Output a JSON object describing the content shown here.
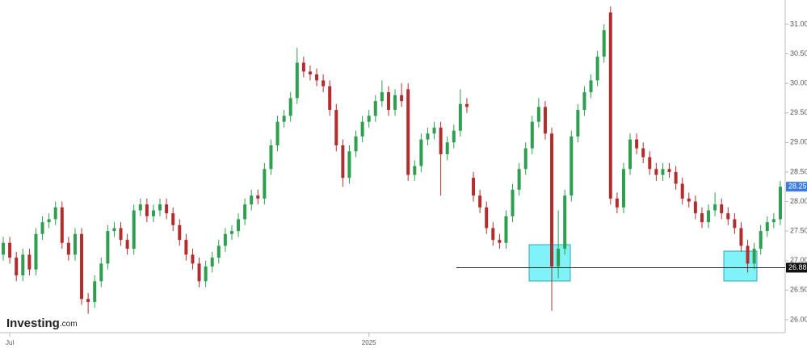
{
  "chart_data": {
    "type": "candlestick",
    "open": [
      27.1,
      27.3,
      27.05,
      26.75,
      27.1,
      26.85,
      27.45,
      27.65,
      27.7,
      27.9,
      27.3,
      27.1,
      27.45,
      26.35,
      26.3,
      26.65,
      26.95,
      27.5,
      27.55,
      27.35,
      27.2,
      27.85,
      27.95,
      27.75,
      27.85,
      27.95,
      27.8,
      27.6,
      27.35,
      27.1,
      26.95,
      26.65,
      26.9,
      27.05,
      27.25,
      27.45,
      27.5,
      27.7,
      27.95,
      28.1,
      28.05,
      28.55,
      28.95,
      29.35,
      29.45,
      29.75,
      30.35,
      30.2,
      30.15,
      30.05,
      29.95,
      29.55,
      28.95,
      28.4,
      28.85,
      29.1,
      29.35,
      29.45,
      29.7,
      29.85,
      29.55,
      29.8,
      29.9,
      28.45,
      28.6,
      29.05,
      29.15,
      29.25,
      28.8,
      29.0,
      29.2,
      29.65,
      28.4,
      28.1,
      27.9,
      27.55,
      27.35,
      27.3,
      27.75,
      28.2,
      28.55,
      28.9,
      29.35,
      29.6,
      29.15,
      26.9,
      27.2,
      28.1,
      29.1,
      29.55,
      29.85,
      30.05,
      30.45,
      31.2,
      28.05,
      27.9,
      28.55,
      29.05,
      28.9,
      28.75,
      28.55,
      28.45,
      28.55,
      28.5,
      28.3,
      28.05,
      28.0,
      27.8,
      27.65,
      27.85,
      27.95,
      27.8,
      27.7,
      27.55,
      27.25,
      26.95,
      27.2,
      27.5,
      27.65,
      27.7
    ],
    "high": [
      27.4,
      27.4,
      27.15,
      27.2,
      27.2,
      27.55,
      27.75,
      27.8,
      28.0,
      28.0,
      27.4,
      27.55,
      27.55,
      26.45,
      26.75,
      27.05,
      27.6,
      27.65,
      27.65,
      27.45,
      27.95,
      28.05,
      28.05,
      27.95,
      28.05,
      28.05,
      27.9,
      27.7,
      27.45,
      27.2,
      27.05,
      27.0,
      27.15,
      27.35,
      27.55,
      27.6,
      27.8,
      28.05,
      28.2,
      28.2,
      28.65,
      29.05,
      29.45,
      29.55,
      29.85,
      30.6,
      30.45,
      30.3,
      30.25,
      30.15,
      30.05,
      29.65,
      29.05,
      28.95,
      29.2,
      29.45,
      29.55,
      29.8,
      30.05,
      29.95,
      29.9,
      30.0,
      30.0,
      28.7,
      29.15,
      29.25,
      29.35,
      29.35,
      29.1,
      29.3,
      29.9,
      29.75,
      28.5,
      28.2,
      28.0,
      27.65,
      27.45,
      27.85,
      28.3,
      28.65,
      29.0,
      29.45,
      29.75,
      29.7,
      29.25,
      27.85,
      28.2,
      29.2,
      29.65,
      29.95,
      30.15,
      30.55,
      31.0,
      31.3,
      28.15,
      28.65,
      29.15,
      29.15,
      29.0,
      28.85,
      28.65,
      28.65,
      28.65,
      28.6,
      28.4,
      28.15,
      28.1,
      27.9,
      27.95,
      28.15,
      28.05,
      27.9,
      27.8,
      27.65,
      27.35,
      27.3,
      27.6,
      27.75,
      27.8,
      28.35
    ],
    "low": [
      27.0,
      26.95,
      26.65,
      26.65,
      26.75,
      26.75,
      27.35,
      27.55,
      27.6,
      27.2,
      27.0,
      27.0,
      26.25,
      26.1,
      26.2,
      26.55,
      26.85,
      27.4,
      27.25,
      27.1,
      27.1,
      27.75,
      27.65,
      27.65,
      27.75,
      27.7,
      27.5,
      27.25,
      27.0,
      26.85,
      26.55,
      26.55,
      26.8,
      26.95,
      27.15,
      27.35,
      27.4,
      27.6,
      27.85,
      27.95,
      27.95,
      28.45,
      28.85,
      29.25,
      29.35,
      29.65,
      30.1,
      30.05,
      29.95,
      29.85,
      29.45,
      28.85,
      28.25,
      28.3,
      28.75,
      29.0,
      29.25,
      29.35,
      29.6,
      29.45,
      29.45,
      29.6,
      28.35,
      28.35,
      28.5,
      28.95,
      29.05,
      28.1,
      28.7,
      28.9,
      29.1,
      29.5,
      28.0,
      27.8,
      27.45,
      27.25,
      27.2,
      27.2,
      27.65,
      28.1,
      28.45,
      28.8,
      29.25,
      29.05,
      26.15,
      26.7,
      27.1,
      28.0,
      29.0,
      29.45,
      29.75,
      29.95,
      30.35,
      27.95,
      27.8,
      27.8,
      28.45,
      28.8,
      28.65,
      28.45,
      28.35,
      28.35,
      28.4,
      28.2,
      27.95,
      27.9,
      27.7,
      27.55,
      27.55,
      27.75,
      27.7,
      27.6,
      27.45,
      27.15,
      26.8,
      26.85,
      27.1,
      27.4,
      27.55,
      27.6
    ],
    "close": [
      27.3,
      27.05,
      26.75,
      27.1,
      26.85,
      27.45,
      27.65,
      27.7,
      27.9,
      27.3,
      27.1,
      27.45,
      26.35,
      26.3,
      26.65,
      26.95,
      27.5,
      27.55,
      27.35,
      27.2,
      27.85,
      27.95,
      27.75,
      27.85,
      27.95,
      27.8,
      27.6,
      27.35,
      27.1,
      26.95,
      26.65,
      26.9,
      27.05,
      27.25,
      27.45,
      27.5,
      27.7,
      27.95,
      28.1,
      28.05,
      28.55,
      28.95,
      29.35,
      29.45,
      29.75,
      30.35,
      30.2,
      30.15,
      30.05,
      29.95,
      29.55,
      28.95,
      28.4,
      28.85,
      29.1,
      29.35,
      29.45,
      29.7,
      29.85,
      29.55,
      29.8,
      29.7,
      28.45,
      28.6,
      29.05,
      29.15,
      29.25,
      28.8,
      29.0,
      29.2,
      29.65,
      29.6,
      28.1,
      27.9,
      27.55,
      27.35,
      27.3,
      27.75,
      28.2,
      28.55,
      28.9,
      29.35,
      29.6,
      29.15,
      26.9,
      27.2,
      28.1,
      29.1,
      29.55,
      29.85,
      30.05,
      30.45,
      30.9,
      28.05,
      27.9,
      28.55,
      29.05,
      28.9,
      28.75,
      28.55,
      28.45,
      28.55,
      28.5,
      28.3,
      28.05,
      28.0,
      27.8,
      27.65,
      27.85,
      27.95,
      27.8,
      27.7,
      27.55,
      27.25,
      26.95,
      27.2,
      27.5,
      27.65,
      27.7,
      28.25
    ],
    "up_color": "#2e9e4f",
    "down_color": "#b22d2d",
    "xlim": [
      -0.5,
      119.5
    ],
    "xticks": [
      {
        "value": 1,
        "label": "Jul"
      },
      {
        "value": 56,
        "label": "2025"
      }
    ],
    "ylim": [
      25.78,
      31.41
    ],
    "yticks": [
      {
        "value": 26,
        "label": "26.00"
      },
      {
        "value": 26.5,
        "label": "26.50"
      },
      {
        "value": 27,
        "label": "27.00"
      },
      {
        "value": 27.5,
        "label": "27.50"
      },
      {
        "value": 28,
        "label": "28.00"
      },
      {
        "value": 28.5,
        "label": "28.50"
      },
      {
        "value": 29,
        "label": "29.00"
      },
      {
        "value": 29.5,
        "label": "29.50"
      },
      {
        "value": 30,
        "label": "30.00"
      },
      {
        "value": 30.5,
        "label": "30.50"
      },
      {
        "value": 31,
        "label": "31.00"
      }
    ],
    "reference_line": 26.88,
    "watermark": {
      "brand": "Investing",
      "suffix": ".com"
    }
  }
}
